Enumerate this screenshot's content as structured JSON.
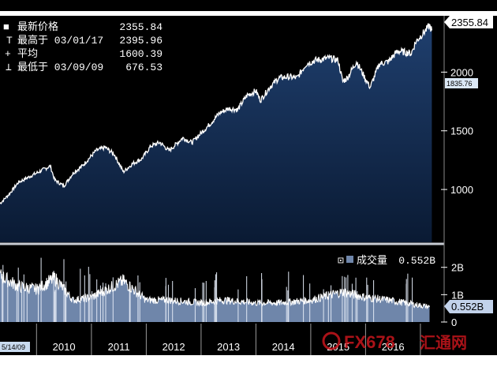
{
  "colors": {
    "background": "#000000",
    "price_fill_top": "#1f3f6e",
    "price_fill_bottom": "#0a1a33",
    "price_line": "#ffffff",
    "volume_fill": "#6f86aa",
    "volume_line": "#ffffff",
    "axis_text": "#ffffff",
    "tag_bg": "#ffffff",
    "low_tag_bg": "#dbe8f6",
    "watermark_red": "#c8161d"
  },
  "legend": {
    "last": {
      "label": "最新价格",
      "value": "2355.84",
      "marker": "■"
    },
    "high": {
      "label": "最高于 03/01/17",
      "value": "2395.96",
      "marker": "T"
    },
    "avg": {
      "label": "平均",
      "value": "1600.39",
      "marker": "+"
    },
    "low": {
      "label": "最低于 03/09/09",
      "value": "676.53",
      "marker": "⊥"
    }
  },
  "tags": {
    "price_last": "2355.84",
    "price_level": "1835.76",
    "volume_last": "0.552B",
    "start_date": "5/14/09"
  },
  "volume_legend": {
    "icon": "⊡",
    "label": "成交量",
    "value": "0.552B"
  },
  "watermark": {
    "text": "FX678",
    "cn": "汇通网"
  },
  "chart_data": [
    {
      "type": "area",
      "x": [
        "2009-05",
        "2009-07",
        "2009-09",
        "2009-11",
        "2010-01",
        "2010-04",
        "2010-05",
        "2010-07",
        "2010-09",
        "2010-11",
        "2011-02",
        "2011-04",
        "2011-06",
        "2011-08",
        "2011-10",
        "2011-12",
        "2012-02",
        "2012-04",
        "2012-06",
        "2012-09",
        "2012-11",
        "2013-01",
        "2013-03",
        "2013-05",
        "2013-07",
        "2013-09",
        "2013-11",
        "2014-01",
        "2014-02",
        "2014-04",
        "2014-06",
        "2014-08",
        "2014-10",
        "2014-12",
        "2015-02",
        "2015-05",
        "2015-07",
        "2015-08",
        "2015-09",
        "2015-11",
        "2016-01",
        "2016-02",
        "2016-04",
        "2016-06",
        "2016-08",
        "2016-11",
        "2016-12",
        "2017-03",
        "2017-03"
      ],
      "values": [
        880,
        960,
        1060,
        1100,
        1140,
        1200,
        1080,
        1030,
        1140,
        1200,
        1330,
        1360,
        1300,
        1150,
        1220,
        1260,
        1370,
        1400,
        1330,
        1440,
        1400,
        1480,
        1560,
        1650,
        1690,
        1680,
        1800,
        1840,
        1760,
        1870,
        1950,
        1960,
        1950,
        2070,
        2100,
        2120,
        2100,
        1920,
        1950,
        2090,
        1940,
        1870,
        2070,
        2090,
        2180,
        2160,
        2260,
        2395,
        2355
      ],
      "series": [
        {
          "name": "最新价格"
        }
      ],
      "axis": "right",
      "ylim": [
        550,
        2480
      ],
      "yticks": [
        1000,
        1500,
        2000
      ]
    },
    {
      "type": "area",
      "x": [
        "2009-05",
        "2009-09",
        "2010-01",
        "2010-05",
        "2010-09",
        "2011-01",
        "2011-08",
        "2012-01",
        "2012-06",
        "2013-01",
        "2013-06",
        "2014-01",
        "2014-06",
        "2015-01",
        "2015-08",
        "2016-01",
        "2016-06",
        "2017-03"
      ],
      "values": [
        1.7,
        1.3,
        1.2,
        1.6,
        0.8,
        0.9,
        1.5,
        0.8,
        0.8,
        0.7,
        0.8,
        0.7,
        0.7,
        0.8,
        1.1,
        0.9,
        0.8,
        0.552
      ],
      "series": [
        {
          "name": "成交量"
        }
      ],
      "unit": "B",
      "axis": "right",
      "ylim": [
        0,
        2.8
      ],
      "yticks": [
        0,
        1,
        2
      ],
      "ytick_labels": [
        "0",
        "1B",
        "2B"
      ]
    }
  ],
  "x_axis": {
    "labels": [
      "2010",
      "2011",
      "2012",
      "2013",
      "2014",
      "2015",
      "2016"
    ]
  }
}
